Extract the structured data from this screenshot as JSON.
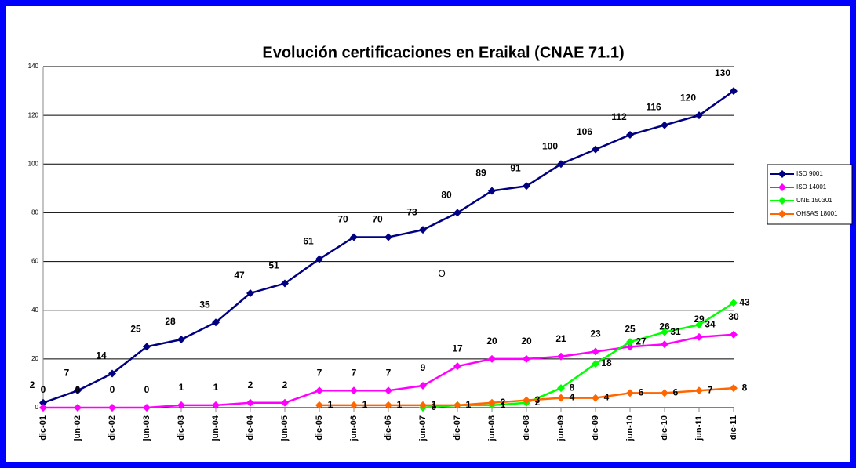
{
  "chart_data": {
    "type": "line",
    "title": "Evolución certificaciones en Eraikal (CNAE 71.1)",
    "categories": [
      "dic-01",
      "jun-02",
      "dic-02",
      "jun-03",
      "dic-03",
      "jun-04",
      "dic-04",
      "jun-05",
      "dic-05",
      "jun-06",
      "dic-06",
      "jun-07",
      "dic-07",
      "jun-08",
      "dic-08",
      "jun-09",
      "dic-09",
      "jun-10",
      "dic-10",
      "jun-11",
      "dic-11"
    ],
    "series": [
      {
        "name": "ISO 9001",
        "color": "#000080",
        "values": [
          2,
          7,
          14,
          25,
          28,
          35,
          47,
          51,
          61,
          70,
          70,
          73,
          80,
          89,
          91,
          100,
          106,
          112,
          116,
          120,
          130
        ]
      },
      {
        "name": "ISO 14001",
        "color": "#ff00ff",
        "values": [
          0,
          0,
          0,
          0,
          1,
          1,
          2,
          2,
          7,
          7,
          7,
          9,
          17,
          20,
          20,
          21,
          23,
          25,
          26,
          29,
          30
        ]
      },
      {
        "name": "UNE 150301",
        "color": "#00ff00",
        "values": [
          null,
          null,
          null,
          null,
          null,
          null,
          null,
          null,
          null,
          null,
          null,
          0,
          1,
          1,
          2,
          8,
          18,
          27,
          31,
          34,
          43
        ]
      },
      {
        "name": "OHSAS 18001",
        "color": "#ff6600",
        "values": [
          null,
          null,
          null,
          null,
          null,
          null,
          null,
          null,
          1,
          1,
          1,
          1,
          1,
          2,
          3,
          4,
          4,
          6,
          6,
          7,
          8
        ]
      }
    ],
    "annotations": [
      "O"
    ],
    "ylim": [
      0,
      140
    ],
    "yticks": [
      0,
      20,
      40,
      60,
      80,
      100,
      120,
      140
    ],
    "grid": true,
    "legend": "right"
  }
}
